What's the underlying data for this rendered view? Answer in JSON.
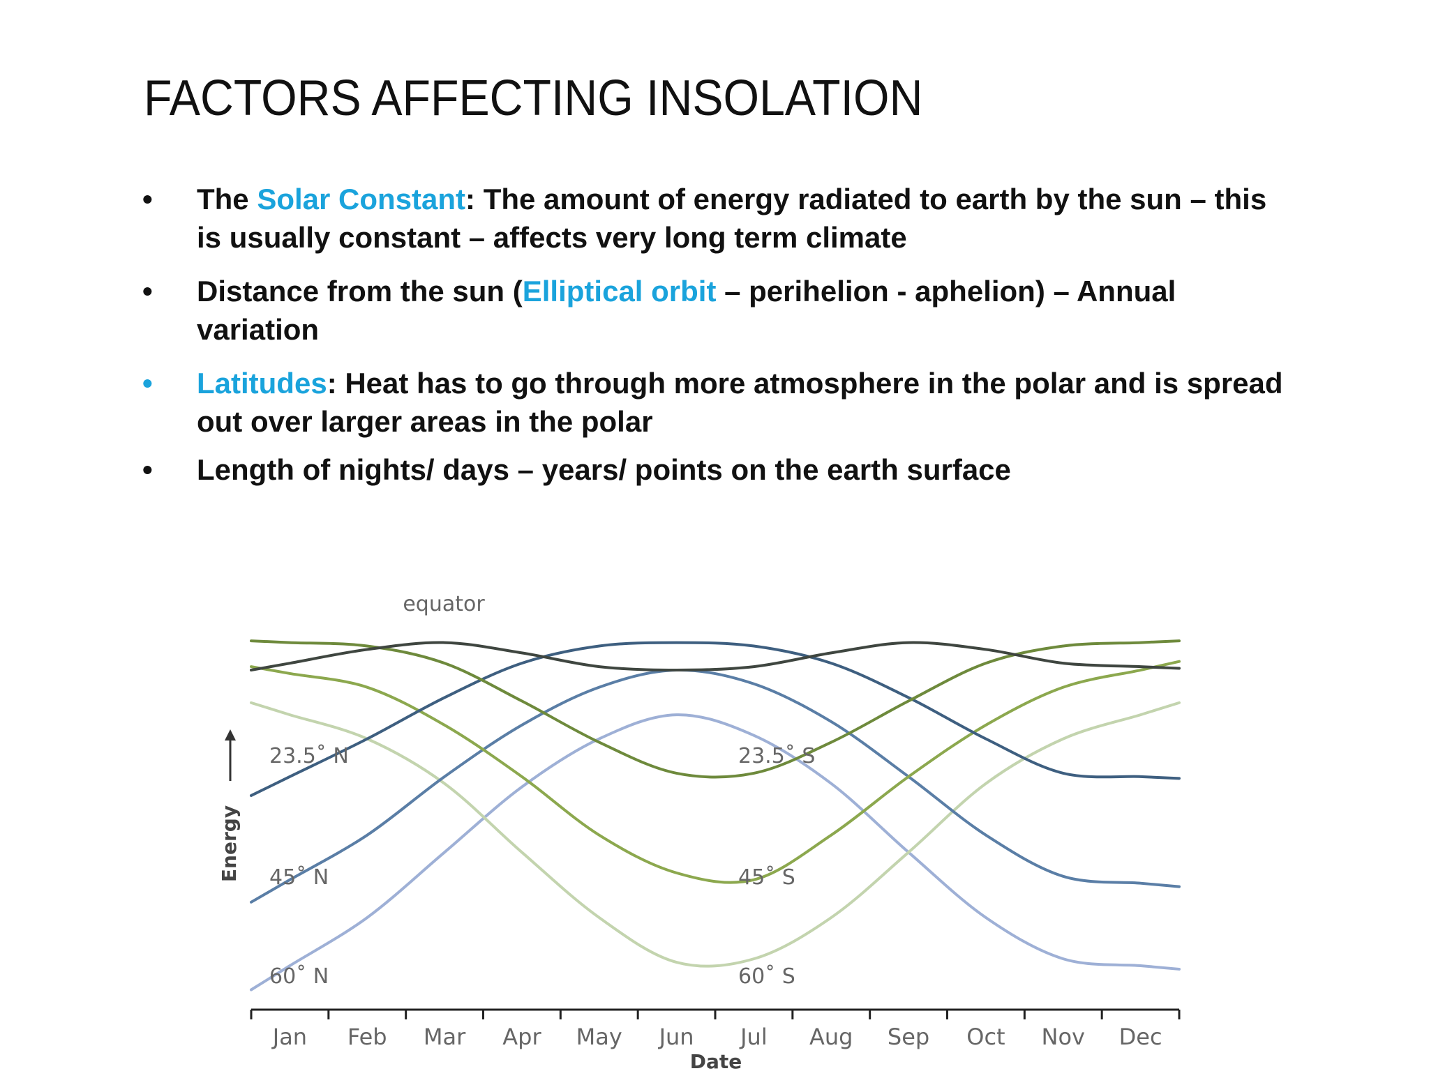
{
  "slide": {
    "title": "FACTORS AFFECTING INSOLATION",
    "bullets": [
      {
        "parts": [
          {
            "t": "The ",
            "accent": false
          },
          {
            "t": "Solar Constant",
            "accent": true
          },
          {
            "t": ": The amount of energy radiated to earth by the sun – this is usually constant – affects very long term climate",
            "accent": false
          }
        ],
        "bullet_accent": false
      },
      {
        "parts": [
          {
            "t": "Distance from the sun (",
            "accent": false
          },
          {
            "t": "Elliptical orbit",
            "accent": true
          },
          {
            "t": " – perihelion - aphelion) – Annual variation",
            "accent": false
          }
        ],
        "bullet_accent": false
      },
      {
        "parts": [
          {
            "t": "Latitudes",
            "accent": true
          },
          {
            "t": ": Heat has to go through more atmosphere in the polar and is spread out over larger areas in the polar",
            "accent": false
          }
        ],
        "bullet_accent": true
      },
      {
        "parts": [
          {
            "t": "Length of nights/ days – years/ points on the earth surface",
            "accent": false
          }
        ],
        "bullet_accent": false
      }
    ],
    "bullet_char": "•",
    "accent_color": "#1aa3dc"
  },
  "chart_data": {
    "type": "line",
    "xlabel": "Date",
    "ylabel": "Energy",
    "categories": [
      "Jan",
      "Feb",
      "Mar",
      "Apr",
      "May",
      "Jun",
      "Jul",
      "Aug",
      "Sep",
      "Oct",
      "Nov",
      "Dec"
    ],
    "ylim": [
      0,
      100
    ],
    "grid": false,
    "legend": "none",
    "series": [
      {
        "name": "equator",
        "color": "#3f4640",
        "values": [
          88,
          92,
          94,
          91,
          87,
          86,
          87,
          91,
          94,
          92,
          88,
          87
        ]
      },
      {
        "name": "23.5° N",
        "color": "#3e5f80",
        "values": [
          55,
          66,
          78,
          88,
          93,
          94,
          93,
          88,
          78,
          66,
          56,
          55
        ]
      },
      {
        "name": "23.5° S",
        "color": "#6e8a3c",
        "values": [
          94,
          93,
          88,
          77,
          65,
          56,
          56,
          65,
          77,
          88,
          93,
          94
        ]
      },
      {
        "name": "45° N",
        "color": "#5a7ea6",
        "values": [
          25,
          38,
          55,
          70,
          81,
          86,
          82,
          71,
          55,
          38,
          26,
          24
        ]
      },
      {
        "name": "45° S",
        "color": "#8ca84e",
        "values": [
          85,
          81,
          70,
          55,
          38,
          27,
          25,
          38,
          55,
          70,
          81,
          86
        ]
      },
      {
        "name": "60° N",
        "color": "#9eb0d6",
        "values": [
          0,
          14,
          33,
          52,
          66,
          73,
          67,
          53,
          33,
          14,
          2,
          0
        ]
      },
      {
        "name": "60° S",
        "color": "#c3d4ae",
        "values": [
          73,
          66,
          53,
          33,
          14,
          1,
          2,
          14,
          33,
          53,
          66,
          73
        ]
      }
    ],
    "annotations": [
      "equator",
      "23.5˚ N",
      "23.5˚ S",
      "45˚ N",
      "45˚ S",
      "60˚ N",
      "60˚ S"
    ]
  }
}
